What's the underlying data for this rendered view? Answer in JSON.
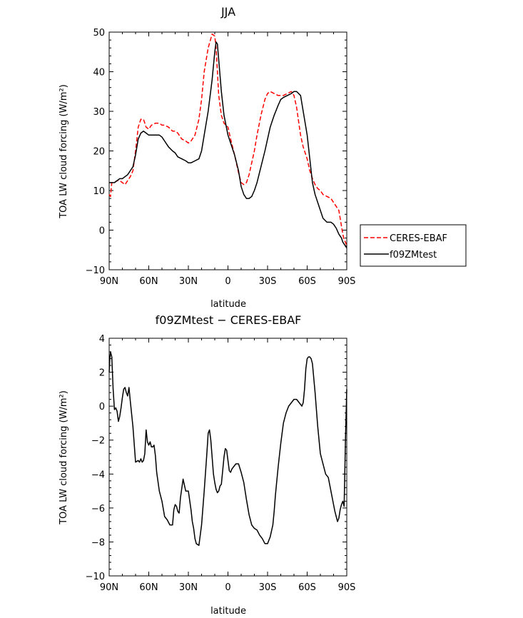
{
  "chart_data": [
    {
      "type": "line",
      "title": "JJA",
      "xlabel": "latitude",
      "ylabel": "TOA LW cloud forcing (W/m²)",
      "xlim": [
        90,
        -90
      ],
      "ylim": [
        -10,
        50
      ],
      "xtick_values": [
        90,
        60,
        30,
        0,
        -30,
        -60,
        -90
      ],
      "xtick_labels": [
        "90N",
        "60N",
        "30N",
        "0",
        "30S",
        "60S",
        "90S"
      ],
      "ytick_values": [
        -10,
        0,
        10,
        20,
        30,
        40,
        50
      ],
      "ytick_labels": [
        "−10",
        "0",
        "10",
        "20",
        "30",
        "40",
        "50"
      ],
      "legend_position": "outside-right",
      "series": [
        {
          "name": "CERES-EBAF",
          "color": "#ff0000",
          "dash": "dashed",
          "x": [
            90,
            89,
            88,
            86,
            84,
            82,
            80,
            78,
            76,
            74,
            72,
            70,
            68,
            66,
            64,
            62,
            60,
            58,
            55,
            52,
            50,
            48,
            45,
            42,
            40,
            38,
            35,
            32,
            30,
            28,
            25,
            22,
            20,
            18,
            15,
            12,
            10,
            9,
            8,
            7,
            5,
            3,
            0,
            -2,
            -5,
            -8,
            -10,
            -12,
            -14,
            -16,
            -18,
            -20,
            -22,
            -25,
            -28,
            -30,
            -32,
            -35,
            -38,
            -40,
            -42,
            -45,
            -48,
            -50,
            -52,
            -55,
            -57,
            -60,
            -62,
            -64,
            -66,
            -68,
            -70,
            -72,
            -75,
            -78,
            -80,
            -82,
            -84,
            -86,
            -87,
            -88,
            -89,
            -90
          ],
          "y": [
            9,
            8.5,
            12,
            12,
            12.5,
            12.5,
            12,
            11.5,
            12.5,
            13.5,
            15,
            20,
            26,
            28,
            28,
            26,
            25.5,
            26.5,
            27,
            27,
            26.5,
            26.5,
            26,
            25,
            25,
            24.5,
            23,
            22.5,
            22,
            22.5,
            24,
            28,
            33,
            40,
            46,
            49.5,
            49,
            46,
            40,
            34,
            29,
            27,
            26,
            23,
            19,
            14.5,
            12,
            11.5,
            12,
            14,
            17,
            20,
            24,
            29,
            33,
            34.5,
            35,
            34.5,
            34,
            34,
            34,
            34.5,
            35,
            34,
            31,
            24,
            21,
            18,
            15,
            13,
            11.5,
            10.5,
            10,
            9,
            8.5,
            8,
            7,
            6,
            5,
            1,
            -1,
            -2.5,
            -3,
            -4
          ]
        },
        {
          "name": "f09ZMtest",
          "color": "#000000",
          "dash": "solid",
          "x": [
            90,
            88,
            86,
            84,
            82,
            80,
            78,
            76,
            74,
            72,
            70,
            68,
            66,
            64,
            62,
            60,
            58,
            55,
            52,
            50,
            48,
            45,
            42,
            40,
            38,
            35,
            32,
            30,
            28,
            25,
            22,
            20,
            18,
            15,
            12,
            10,
            9,
            8,
            7,
            5,
            3,
            0,
            -2,
            -5,
            -8,
            -10,
            -12,
            -14,
            -16,
            -18,
            -20,
            -22,
            -25,
            -28,
            -30,
            -32,
            -35,
            -38,
            -40,
            -42,
            -45,
            -48,
            -50,
            -52,
            -55,
            -57,
            -60,
            -62,
            -64,
            -66,
            -68,
            -70,
            -72,
            -75,
            -78,
            -80,
            -82,
            -84,
            -86,
            -87,
            -88,
            -89,
            -90
          ],
          "y": [
            12,
            12,
            12,
            12.5,
            13,
            13,
            13.5,
            14,
            15,
            16,
            19,
            23,
            24.5,
            25,
            24.5,
            24,
            24,
            24,
            24,
            23.5,
            22.5,
            21,
            20,
            19.5,
            18.5,
            18,
            17.5,
            17,
            17,
            17.5,
            18,
            20,
            24,
            30,
            38,
            45,
            47.5,
            47,
            43,
            35,
            29,
            24,
            22,
            19,
            15,
            11,
            9,
            8,
            8,
            8.5,
            10,
            12,
            16,
            20,
            23,
            26,
            29,
            31.5,
            33,
            33.5,
            34,
            34.5,
            35,
            35,
            34,
            30,
            24,
            18,
            12,
            9,
            7,
            5,
            3,
            2,
            2,
            1.5,
            0.5,
            -1,
            -2,
            -3,
            -3.5,
            -4,
            -4.5
          ]
        }
      ]
    },
    {
      "type": "line",
      "title": "f09ZMtest − CERES-EBAF",
      "xlabel": "latitude",
      "ylabel": "TOA LW cloud forcing (W/m²)",
      "xlim": [
        90,
        -90
      ],
      "ylim": [
        -10,
        4
      ],
      "xtick_values": [
        90,
        60,
        30,
        0,
        -30,
        -60,
        -90
      ],
      "xtick_labels": [
        "90N",
        "60N",
        "30N",
        "0",
        "30S",
        "60S",
        "90S"
      ],
      "ytick_values": [
        -10,
        -8,
        -6,
        -4,
        -2,
        0,
        2,
        4
      ],
      "ytick_labels": [
        "−10",
        "−8",
        "−6",
        "−4",
        "−2",
        "0",
        "2",
        "4"
      ],
      "series": [
        {
          "name": "",
          "color": "#000000",
          "dash": "solid",
          "x": [
            90,
            89.5,
            89,
            88,
            87,
            86,
            85,
            84,
            83,
            82,
            81,
            80,
            79,
            78,
            77,
            76,
            75,
            74,
            72,
            70,
            68,
            67,
            66,
            65,
            64,
            63,
            62,
            61,
            60,
            59,
            58,
            57,
            56,
            55,
            54,
            52,
            50,
            48,
            46,
            44,
            42,
            41,
            40,
            39,
            38,
            37,
            36,
            34,
            32,
            30,
            28,
            27,
            26,
            25,
            24,
            22,
            20,
            18,
            16,
            15,
            14,
            13,
            12,
            11,
            10,
            9,
            8,
            7,
            6,
            5,
            4,
            3,
            2,
            1,
            0,
            -1,
            -2,
            -3,
            -4,
            -5,
            -6,
            -8,
            -10,
            -12,
            -14,
            -16,
            -18,
            -20,
            -22,
            -24,
            -26,
            -28,
            -30,
            -32,
            -34,
            -35,
            -36,
            -38,
            -40,
            -42,
            -44,
            -46,
            -48,
            -50,
            -52,
            -54,
            -56,
            -57,
            -58,
            -59,
            -60,
            -61,
            -62,
            -63,
            -64,
            -66,
            -68,
            -70,
            -72,
            -74,
            -76,
            -78,
            -80,
            -81,
            -82,
            -83,
            -84,
            -85,
            -86,
            -87,
            -88,
            -89,
            -90
          ],
          "y": [
            2,
            2.8,
            3.2,
            2.9,
            1.0,
            -0.2,
            -0.1,
            -0.3,
            -0.9,
            -0.6,
            -0.1,
            0.5,
            1.0,
            1.1,
            0.8,
            0.6,
            1.1,
            0.3,
            -1.2,
            -3.3,
            -3.2,
            -3.3,
            -3.1,
            -3.3,
            -3.2,
            -2.8,
            -1.4,
            -2.1,
            -2.3,
            -2.1,
            -2.4,
            -2.4,
            -2.3,
            -2.9,
            -3.9,
            -5.0,
            -5.6,
            -6.5,
            -6.7,
            -7.0,
            -7.0,
            -6.1,
            -5.8,
            -5.9,
            -6.2,
            -6.3,
            -5.4,
            -4.3,
            -5.0,
            -5.0,
            -6.1,
            -6.8,
            -7.2,
            -7.8,
            -8.1,
            -8.2,
            -7.0,
            -5.0,
            -2.8,
            -1.6,
            -1.4,
            -2.0,
            -3.0,
            -4.0,
            -4.5,
            -4.9,
            -5.1,
            -5.0,
            -4.7,
            -4.6,
            -3.8,
            -3.0,
            -2.5,
            -2.6,
            -3.2,
            -3.8,
            -3.9,
            -3.7,
            -3.6,
            -3.5,
            -3.4,
            -3.4,
            -3.9,
            -4.5,
            -5.5,
            -6.4,
            -7.0,
            -7.2,
            -7.3,
            -7.6,
            -7.8,
            -8.1,
            -8.1,
            -7.7,
            -7.0,
            -6.2,
            -5.2,
            -3.6,
            -2.2,
            -1.0,
            -0.4,
            0.0,
            0.2,
            0.4,
            0.4,
            0.2,
            0.0,
            0.2,
            1.0,
            2.2,
            2.8,
            2.9,
            2.9,
            2.8,
            2.5,
            0.8,
            -1.2,
            -2.8,
            -3.4,
            -4.0,
            -4.2,
            -5.0,
            -5.8,
            -6.2,
            -6.5,
            -6.8,
            -6.6,
            -6.1,
            -5.8,
            -5.6,
            -5.9,
            -2.0,
            1.0
          ]
        }
      ]
    }
  ],
  "legend": {
    "items": [
      {
        "label": "CERES-EBAF",
        "color": "#ff0000",
        "dash": "dashed"
      },
      {
        "label": "f09ZMtest",
        "color": "#000000",
        "dash": "solid"
      }
    ]
  }
}
